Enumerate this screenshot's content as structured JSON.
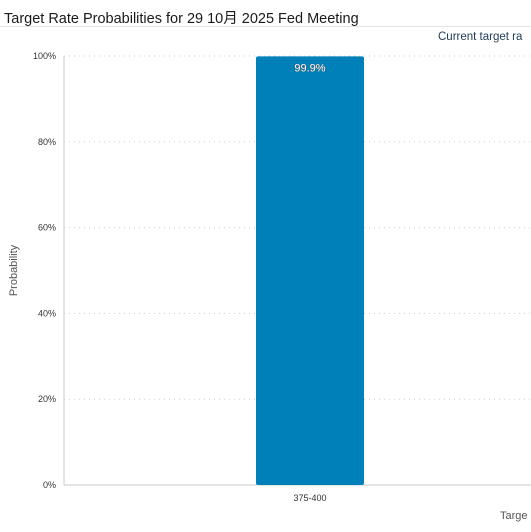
{
  "title": "Target Rate Probabilities for 29 10月 2025 Fed Meeting",
  "subtitle": "Current target ra",
  "colors": {
    "bar": "#0080b8",
    "grid": "#cfcfcf",
    "axis": "#c8c8c8"
  },
  "chart_data": {
    "type": "bar",
    "title": "Target Rate Probabilities for 29 10月 2025 Fed Meeting",
    "subtitle": "Current target ra",
    "categories": [
      "375-400"
    ],
    "values": [
      99.9
    ],
    "data_labels": [
      "99.9%"
    ],
    "xlabel": "Targe",
    "ylabel": "Probability",
    "ylim": [
      0,
      100
    ],
    "yticks": [
      {
        "value": 0,
        "label": "0%"
      },
      {
        "value": 20,
        "label": "20%"
      },
      {
        "value": 40,
        "label": "40%"
      },
      {
        "value": 60,
        "label": "60%"
      },
      {
        "value": 80,
        "label": "80%"
      },
      {
        "value": 100,
        "label": "100%"
      }
    ],
    "grid": true,
    "legend": "none"
  }
}
